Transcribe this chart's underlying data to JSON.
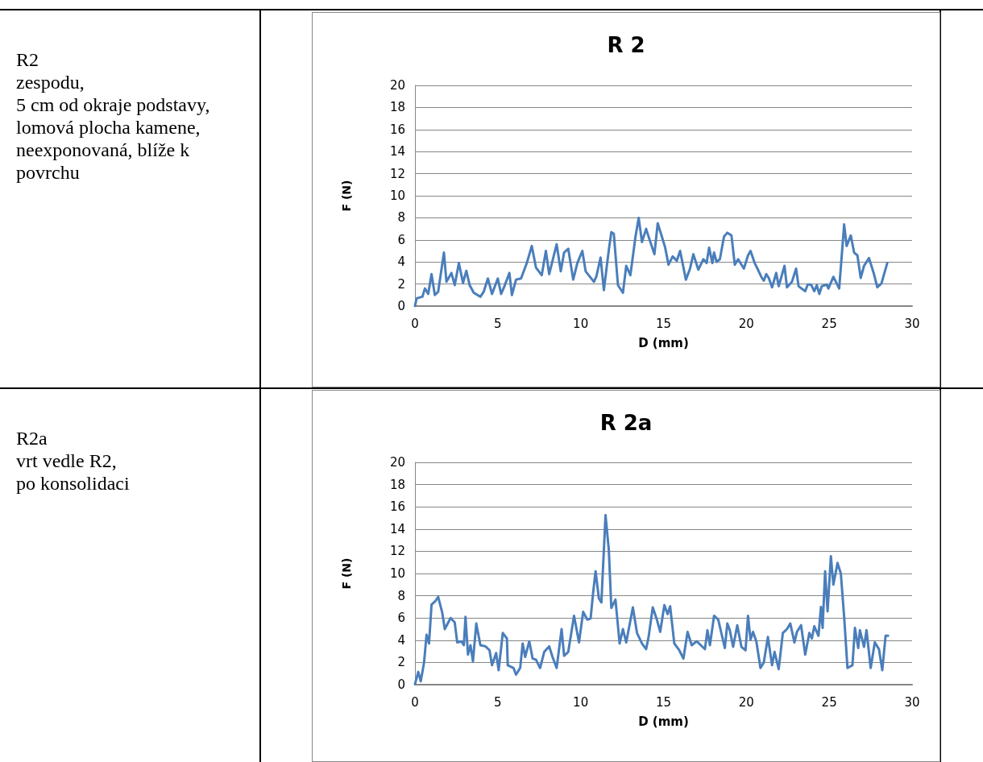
{
  "chart_data": [
    {
      "type": "other",
      "annotations": [
        "R2",
        "zespodu,",
        "5 cm od okraje podstavy,",
        "lomová plocha kamene,",
        "neexponovaná, blíže k povrchu"
      ]
    },
    {
      "type": "line",
      "title": "R 2",
      "xlabel": "D (mm)",
      "ylabel": "F (N)",
      "color": "#4a7ebb",
      "marker": "none",
      "line_style": "solid",
      "grid": "y",
      "xlim": [
        0,
        30
      ],
      "xticks": [
        0,
        5,
        10,
        15,
        20,
        25,
        30
      ],
      "ylim": [
        0,
        20
      ],
      "yticks": [
        0,
        2,
        4,
        6,
        8,
        10,
        12,
        14,
        16,
        18,
        20
      ],
      "x": [
        0,
        0.1,
        0.45,
        0.6,
        0.8,
        1.0,
        1.2,
        1.4,
        1.75,
        1.9,
        2.2,
        2.4,
        2.65,
        2.9,
        3.1,
        3.3,
        3.55,
        3.95,
        4.15,
        4.4,
        4.65,
        5.0,
        5.2,
        5.4,
        5.7,
        5.85,
        6.1,
        6.4,
        6.75,
        7.05,
        7.3,
        7.65,
        7.9,
        8.1,
        8.55,
        8.8,
        9.0,
        9.25,
        9.55,
        9.8,
        10.1,
        10.3,
        10.8,
        10.95,
        11.2,
        11.4,
        11.7,
        11.85,
        12.0,
        12.25,
        12.55,
        12.75,
        13.0,
        13.3,
        13.5,
        13.7,
        13.95,
        14.15,
        14.45,
        14.65,
        14.9,
        15.1,
        15.3,
        15.55,
        15.8,
        16.0,
        16.35,
        16.6,
        16.8,
        17.1,
        17.4,
        17.6,
        17.75,
        17.95,
        18.05,
        18.2,
        18.4,
        18.65,
        18.85,
        19.1,
        19.3,
        19.5,
        19.85,
        20.1,
        20.25,
        20.5,
        20.7,
        20.9,
        21.05,
        21.2,
        21.35,
        21.55,
        21.8,
        21.95,
        22.3,
        22.45,
        22.75,
        23.0,
        23.15,
        23.55,
        23.7,
        23.9,
        24.1,
        24.25,
        24.4,
        24.55,
        24.85,
        24.95,
        25.25,
        25.6,
        25.9,
        26.05,
        26.3,
        26.5,
        26.7,
        26.9,
        27.1,
        27.4,
        27.7,
        27.9,
        28.15,
        28.5
      ],
      "values": [
        0,
        0.7,
        0.85,
        1.6,
        1.1,
        2.9,
        1.0,
        1.3,
        4.85,
        2.2,
        3.0,
        1.9,
        3.9,
        2.1,
        3.2,
        1.9,
        1.2,
        0.85,
        1.3,
        2.5,
        1.1,
        2.5,
        1.1,
        1.8,
        3.0,
        1.0,
        2.4,
        2.5,
        3.9,
        5.45,
        3.5,
        2.8,
        5.0,
        2.9,
        5.6,
        3.15,
        4.85,
        5.2,
        2.4,
        3.9,
        5.0,
        3.15,
        2.2,
        2.7,
        4.4,
        1.45,
        5.1,
        6.7,
        6.55,
        1.9,
        1.2,
        3.65,
        2.8,
        6.2,
        8.0,
        5.8,
        7.0,
        6.05,
        4.7,
        7.5,
        6.3,
        5.3,
        3.75,
        4.5,
        4.1,
        5.0,
        2.4,
        3.4,
        4.7,
        3.3,
        4.25,
        3.9,
        5.3,
        3.9,
        4.85,
        4.0,
        4.25,
        6.3,
        6.65,
        6.4,
        3.75,
        4.25,
        3.4,
        4.6,
        5.0,
        3.9,
        3.3,
        2.65,
        2.3,
        2.9,
        2.55,
        1.7,
        3.0,
        1.8,
        3.65,
        1.7,
        2.2,
        3.4,
        1.8,
        1.35,
        1.95,
        1.95,
        1.35,
        1.9,
        1.1,
        1.8,
        1.95,
        1.6,
        2.65,
        1.6,
        7.4,
        5.45,
        6.4,
        4.85,
        4.6,
        2.55,
        3.65,
        4.35,
        2.9,
        1.7,
        2.05,
        3.9
      ]
    },
    {
      "type": "other",
      "annotations": [
        "R2a",
        "vrt vedle R2,",
        "po konsolidaci"
      ]
    },
    {
      "type": "line",
      "title": "R 2a",
      "xlabel": "D (mm)",
      "ylabel": "F (N)",
      "color": "#4a7ebb",
      "marker": "none",
      "line_style": "solid",
      "grid": "y",
      "xlim": [
        0,
        30
      ],
      "xticks": [
        0,
        5,
        10,
        15,
        20,
        25,
        30
      ],
      "ylim": [
        0,
        20
      ],
      "yticks": [
        0,
        2,
        4,
        6,
        8,
        10,
        12,
        14,
        16,
        18,
        20
      ],
      "x": [
        0,
        0.2,
        0.35,
        0.55,
        0.7,
        0.85,
        1.0,
        1.25,
        1.4,
        1.65,
        1.8,
        2.15,
        2.4,
        2.55,
        2.8,
        2.95,
        3.05,
        3.2,
        3.35,
        3.5,
        3.7,
        3.95,
        4.25,
        4.5,
        4.65,
        4.9,
        5.05,
        5.3,
        5.55,
        5.6,
        5.95,
        6.1,
        6.35,
        6.5,
        6.65,
        6.9,
        7.1,
        7.3,
        7.55,
        7.8,
        8.1,
        8.3,
        8.55,
        8.85,
        9.0,
        9.25,
        9.6,
        9.9,
        10.15,
        10.4,
        10.6,
        10.75,
        10.9,
        11.1,
        11.25,
        11.5,
        11.7,
        11.85,
        12.1,
        12.35,
        12.55,
        12.75,
        13.15,
        13.4,
        13.7,
        13.95,
        14.1,
        14.35,
        14.6,
        14.8,
        15.05,
        15.25,
        15.4,
        15.65,
        15.95,
        16.2,
        16.45,
        16.7,
        17.0,
        17.25,
        17.5,
        17.65,
        17.8,
        18.05,
        18.3,
        18.7,
        18.85,
        19.0,
        19.2,
        19.45,
        19.7,
        19.95,
        20.1,
        20.25,
        20.4,
        20.6,
        20.85,
        21.05,
        21.3,
        21.55,
        21.7,
        21.95,
        22.2,
        22.45,
        22.65,
        22.9,
        23.05,
        23.3,
        23.55,
        23.8,
        23.95,
        24.1,
        24.35,
        24.5,
        24.6,
        24.75,
        24.9,
        25.1,
        25.25,
        25.5,
        25.7,
        25.9,
        26.1,
        26.4,
        26.55,
        26.75,
        26.85,
        27.1,
        27.25,
        27.5,
        27.75,
        28.0,
        28.2,
        28.4,
        28.55
      ],
      "values": [
        0.05,
        1.15,
        0.3,
        2.0,
        4.5,
        3.7,
        7.2,
        7.55,
        7.9,
        6.45,
        5.0,
        6.0,
        5.6,
        3.8,
        3.9,
        3.55,
        6.1,
        2.7,
        3.55,
        2.1,
        5.5,
        3.55,
        3.45,
        3.1,
        1.75,
        2.85,
        1.3,
        4.65,
        4.15,
        1.75,
        1.5,
        0.9,
        1.5,
        3.7,
        2.5,
        3.9,
        2.35,
        2.25,
        1.5,
        2.95,
        3.45,
        2.5,
        1.5,
        5.0,
        2.6,
        2.95,
        6.2,
        3.8,
        6.55,
        5.85,
        5.95,
        8.25,
        10.2,
        7.75,
        7.4,
        15.25,
        12.1,
        6.9,
        7.65,
        3.7,
        5.0,
        3.8,
        6.95,
        4.65,
        3.7,
        3.2,
        4.3,
        6.95,
        5.85,
        4.75,
        7.15,
        6.35,
        7.05,
        3.7,
        3.1,
        2.35,
        4.75,
        3.55,
        3.9,
        3.55,
        3.2,
        4.9,
        3.55,
        6.2,
        5.85,
        3.3,
        5.5,
        4.9,
        3.4,
        5.35,
        3.4,
        3.1,
        6.2,
        4.05,
        4.75,
        3.9,
        1.5,
        2.0,
        4.3,
        1.75,
        2.95,
        1.4,
        4.65,
        5.0,
        5.5,
        3.8,
        4.75,
        5.35,
        2.7,
        4.65,
        4.15,
        5.25,
        4.4,
        7.0,
        5.1,
        10.2,
        6.6,
        11.55,
        9.0,
        10.95,
        10.0,
        6.1,
        1.5,
        1.75,
        5.1,
        3.3,
        4.9,
        3.4,
        4.9,
        1.5,
        3.8,
        3.2,
        1.3,
        4.4,
        4.4
      ]
    }
  ]
}
